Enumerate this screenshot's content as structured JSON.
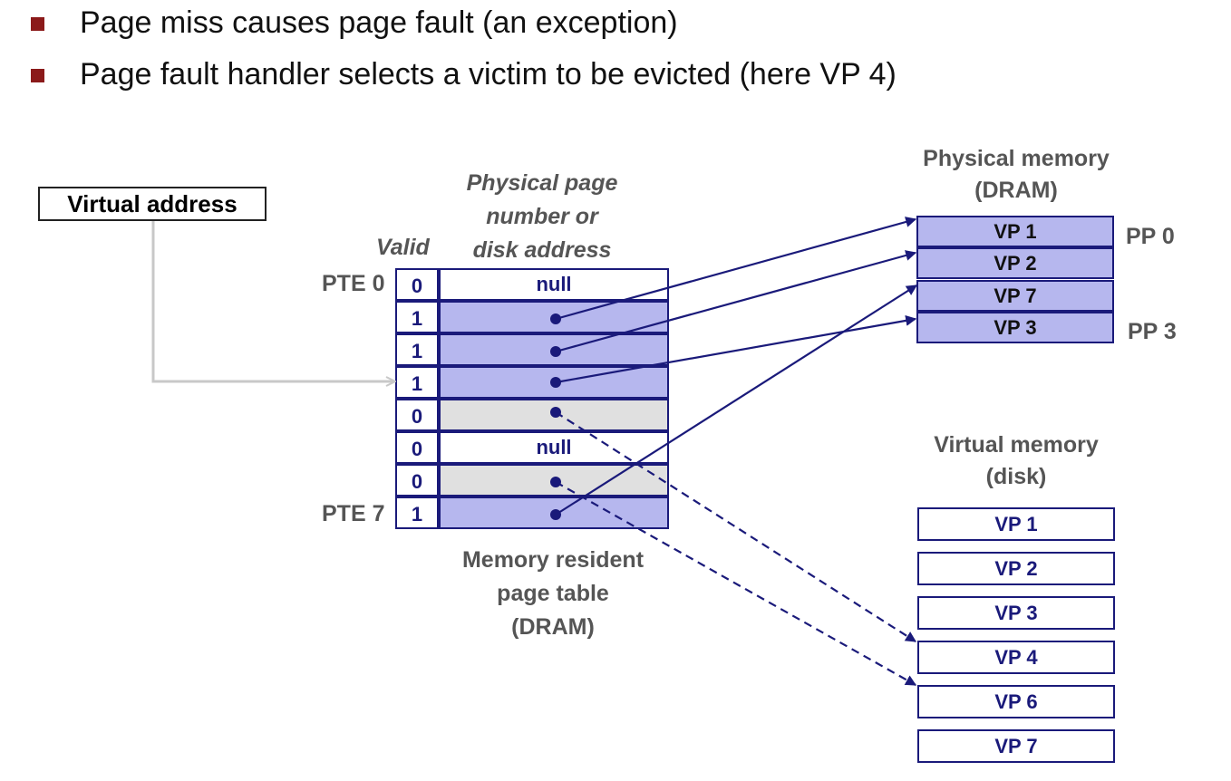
{
  "bullets": [
    "Page miss causes page fault (an exception)",
    "Page fault handler selects a victim to be evicted (here VP 4)"
  ],
  "virtual_address_label": "Virtual address",
  "page_table": {
    "valid_header": "Valid",
    "address_header_lines": [
      "Physical page",
      "number or",
      "disk address"
    ],
    "first_entry_label": "PTE 0",
    "last_entry_label": "PTE 7",
    "caption_lines": [
      "Memory resident",
      "page table",
      "(DRAM)"
    ],
    "entries": [
      {
        "valid": "0",
        "content": "null",
        "kind": "null"
      },
      {
        "valid": "1",
        "content": "",
        "kind": "memory"
      },
      {
        "valid": "1",
        "content": "",
        "kind": "memory"
      },
      {
        "valid": "1",
        "content": "",
        "kind": "memory"
      },
      {
        "valid": "0",
        "content": "",
        "kind": "disk"
      },
      {
        "valid": "0",
        "content": "null",
        "kind": "null"
      },
      {
        "valid": "0",
        "content": "",
        "kind": "disk"
      },
      {
        "valid": "1",
        "content": "",
        "kind": "memory"
      }
    ]
  },
  "physical_memory": {
    "title_lines": [
      "Physical memory",
      "(DRAM)"
    ],
    "pages": [
      "VP 1",
      "VP 2",
      "VP 7",
      "VP 3"
    ],
    "first_page_label": "PP 0",
    "last_page_label": "PP 3"
  },
  "virtual_memory": {
    "title_lines": [
      "Virtual memory",
      "(disk)"
    ],
    "pages": [
      "VP 1",
      "VP 2",
      "VP 3",
      "VP 4",
      "VP 6",
      "VP 7"
    ]
  },
  "colors": {
    "bullet": "#8b1a1a",
    "navy": "#1a1a7a",
    "memory_fill": "#b6b7ee",
    "disk_fill": "#e0e0e0",
    "label_gray": "#555555",
    "va_arrow": "#c8c8c8"
  }
}
